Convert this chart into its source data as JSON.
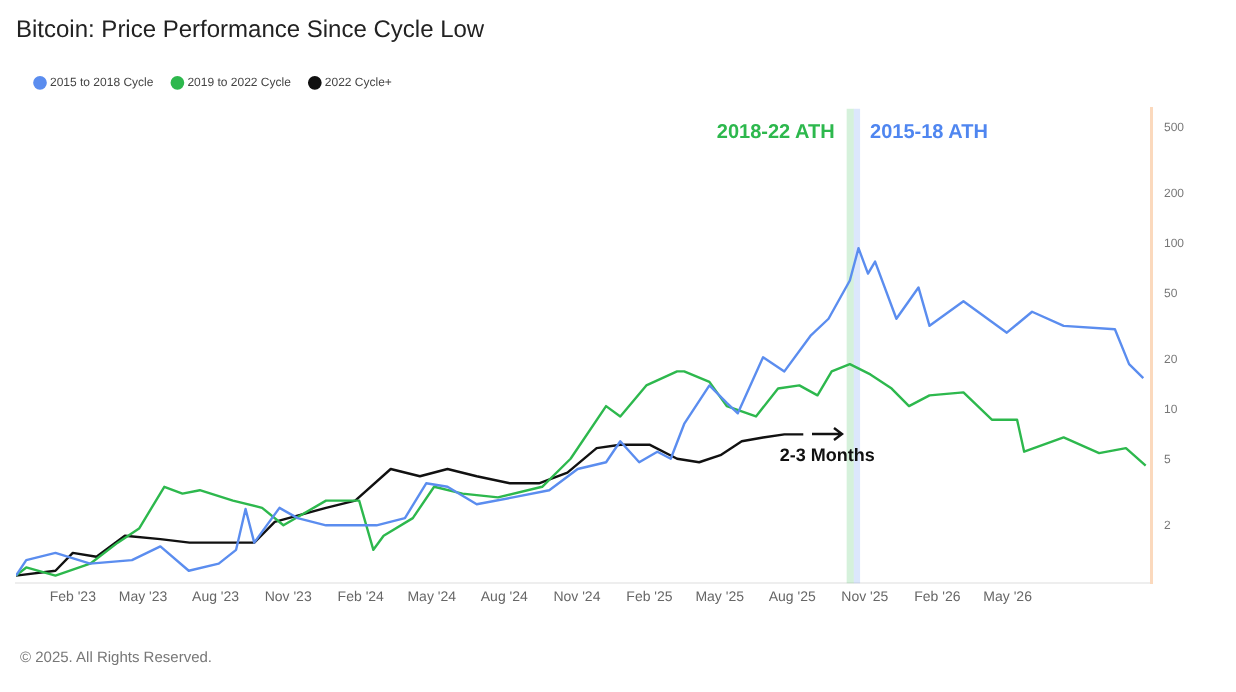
{
  "chart_data": {
    "type": "line",
    "title": "Bitcoin: Price Performance Since Cycle Low",
    "legend": "top left",
    "grid": false,
    "log": "y",
    "marker": "none",
    "ylim": [
      0.9,
      650
    ],
    "yticks": [
      2,
      5,
      10,
      20,
      50,
      100,
      200,
      500
    ],
    "xlim": [
      "2022-11-21",
      "2026-10-31"
    ],
    "xticks": [
      {
        "value": "2023-02-01",
        "label": "Feb '23"
      },
      {
        "value": "2023-05-01",
        "label": "May '23"
      },
      {
        "value": "2023-08-01",
        "label": "Aug '23"
      },
      {
        "value": "2023-11-01",
        "label": "Nov '23"
      },
      {
        "value": "2024-02-01",
        "label": "Feb '24"
      },
      {
        "value": "2024-05-01",
        "label": "May '24"
      },
      {
        "value": "2024-08-01",
        "label": "Aug '24"
      },
      {
        "value": "2024-11-01",
        "label": "Nov '24"
      },
      {
        "value": "2025-02-01",
        "label": "Feb '25"
      },
      {
        "value": "2025-05-01",
        "label": "May '25"
      },
      {
        "value": "2025-08-01",
        "label": "Aug '25"
      },
      {
        "value": "2025-11-01",
        "label": "Nov '25"
      },
      {
        "value": "2026-02-01",
        "label": "Feb '26"
      },
      {
        "value": "2026-05-01",
        "label": "May '26"
      }
    ],
    "bands": [
      {
        "axis": "x",
        "from": "2025-10-09",
        "to": "2025-10-18",
        "label": "2018-22 ATH",
        "color": "#2db84d"
      },
      {
        "axis": "x",
        "from": "2025-10-18",
        "to": "2025-10-26",
        "label": "2015-18 ATH",
        "color": "#4f86f0"
      }
    ],
    "annotations": [
      "2-3 Months",
      "© 2025. All Rights Reserved."
    ],
    "series": [
      {
        "name": "2015 to 2018 Cycle",
        "color": "#5b8def",
        "x": [
          "2022-11-21",
          "2022-12-04",
          "2023-01-10",
          "2023-02-23",
          "2023-04-17",
          "2023-05-23",
          "2023-06-28",
          "2023-08-05",
          "2023-08-27",
          "2023-09-08",
          "2023-09-19",
          "2023-10-21",
          "2023-11-13",
          "2023-12-19",
          "2024-02-21",
          "2024-03-28",
          "2024-04-24",
          "2024-05-21",
          "2024-06-27",
          "2024-08-12",
          "2024-09-27",
          "2024-11-02",
          "2024-12-08",
          "2024-12-26",
          "2025-01-19",
          "2025-02-11",
          "2025-02-28",
          "2025-03-17",
          "2025-04-18",
          "2025-05-10",
          "2025-05-24",
          "2025-06-25",
          "2025-07-22",
          "2025-08-24",
          "2025-09-16",
          "2025-10-13",
          "2025-10-24",
          "2025-11-05",
          "2025-11-14",
          "2025-12-11",
          "2026-01-08",
          "2026-01-22",
          "2026-03-06",
          "2026-04-30",
          "2026-06-01",
          "2026-07-11",
          "2026-09-14",
          "2026-10-02",
          "2026-10-20"
        ],
        "values": [
          1.0,
          1.24,
          1.37,
          1.18,
          1.24,
          1.5,
          1.07,
          1.18,
          1.43,
          2.52,
          1.58,
          2.56,
          2.22,
          2.01,
          2.01,
          2.22,
          3.6,
          3.43,
          2.69,
          2.96,
          3.27,
          4.39,
          4.82,
          6.45,
          4.82,
          5.58,
          5.06,
          8.2,
          14.0,
          11.0,
          9.5,
          20.7,
          17.0,
          27.8,
          35.3,
          60,
          94,
          66,
          78,
          35.3,
          54.5,
          32,
          45,
          29.1,
          38.9,
          32,
          30.5,
          18.8,
          15.5
        ]
      },
      {
        "name": "2019 to 2022 Cycle",
        "color": "#2db84d",
        "x": [
          "2022-11-21",
          "2022-12-04",
          "2023-01-10",
          "2023-02-23",
          "2023-03-30",
          "2023-04-26",
          "2023-05-28",
          "2023-06-20",
          "2023-07-12",
          "2023-08-23",
          "2023-09-29",
          "2023-10-26",
          "2023-12-19",
          "2024-01-30",
          "2024-02-17",
          "2024-03-01",
          "2024-04-07",
          "2024-05-04",
          "2024-06-09",
          "2024-07-24",
          "2024-09-18",
          "2024-10-24",
          "2024-12-08",
          "2024-12-26",
          "2025-01-28",
          "2025-03-08",
          "2025-03-17",
          "2025-04-18",
          "2025-05-10",
          "2025-06-16",
          "2025-07-14",
          "2025-08-10",
          "2025-09-02",
          "2025-09-20",
          "2025-10-13",
          "2025-11-08",
          "2025-12-05",
          "2025-12-27",
          "2026-01-22",
          "2026-03-06",
          "2026-04-11",
          "2026-05-13",
          "2026-05-22",
          "2026-07-11",
          "2026-08-25",
          "2026-09-28",
          "2026-10-23"
        ],
        "values": [
          1.0,
          1.12,
          1.0,
          1.18,
          1.58,
          1.92,
          3.43,
          3.12,
          3.27,
          2.83,
          2.56,
          2.01,
          2.83,
          2.83,
          1.43,
          1.74,
          2.22,
          3.43,
          3.12,
          2.96,
          3.43,
          5.06,
          10.5,
          9.1,
          14.0,
          17.0,
          17.0,
          14.7,
          10.5,
          9.1,
          13.4,
          14.0,
          12.2,
          17.0,
          18.8,
          16.3,
          13.4,
          10.5,
          12.2,
          12.7,
          8.7,
          8.7,
          5.58,
          6.8,
          5.47,
          5.86,
          4.6
        ]
      },
      {
        "name": "2022 Cycle+",
        "color": "#111111",
        "x": [
          "2022-11-21",
          "2023-01-10",
          "2023-02-01",
          "2023-03-03",
          "2023-04-08",
          "2023-05-23",
          "2023-06-29",
          "2023-08-13",
          "2023-09-19",
          "2023-10-15",
          "2023-12-19",
          "2024-01-25",
          "2024-03-10",
          "2024-04-16",
          "2024-05-21",
          "2024-06-27",
          "2024-08-08",
          "2024-09-14",
          "2024-10-20",
          "2024-11-26",
          "2024-12-26",
          "2025-02-01",
          "2025-03-08",
          "2025-04-05",
          "2025-05-02",
          "2025-05-29",
          "2025-06-25",
          "2025-07-22",
          "2025-08-15"
        ],
        "values": [
          1.0,
          1.07,
          1.37,
          1.3,
          1.74,
          1.66,
          1.58,
          1.58,
          1.58,
          2.11,
          2.56,
          2.83,
          4.39,
          3.97,
          4.39,
          3.97,
          3.6,
          3.6,
          4.17,
          5.86,
          6.15,
          6.15,
          5.06,
          4.82,
          5.32,
          6.45,
          6.8,
          7.1,
          7.1
        ]
      }
    ]
  }
}
